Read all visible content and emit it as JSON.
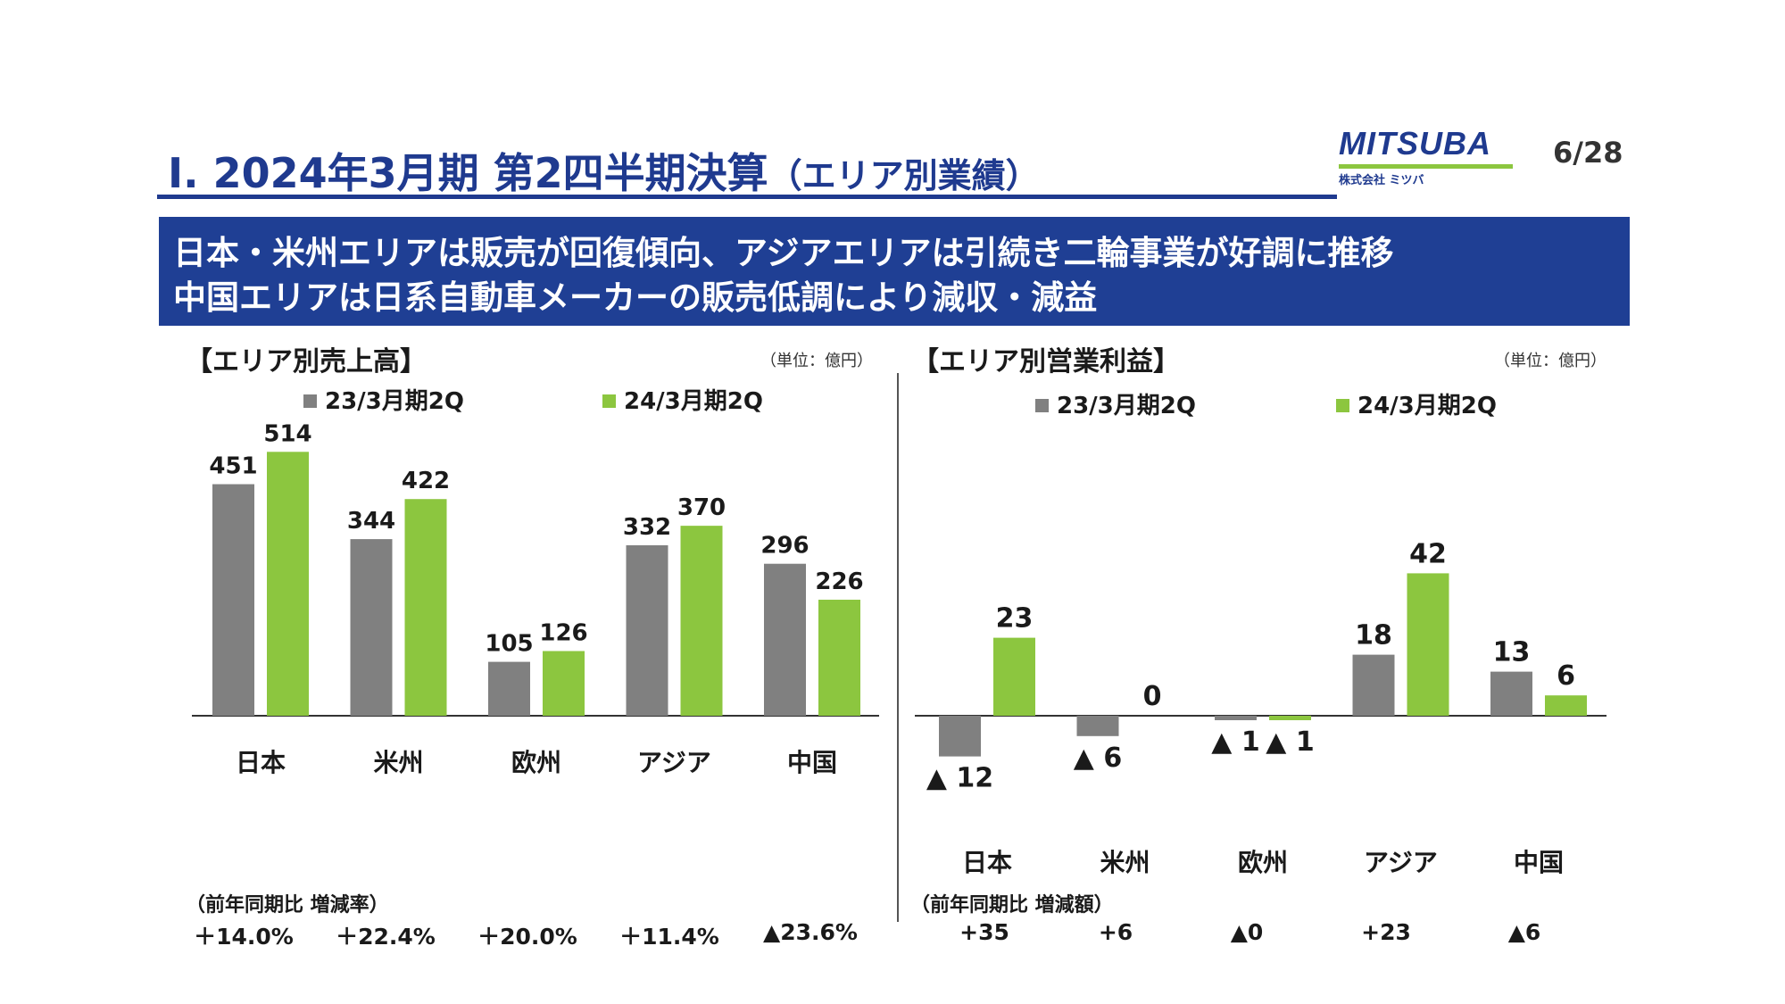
{
  "header": {
    "title": "Ⅰ. 2024年3月期 第2四半期決算",
    "title_sub": "（エリア別業績）",
    "logo_text": "MITSUBA",
    "logo_sub": "株式会社 ミツバ",
    "page": "6/28"
  },
  "banner": {
    "line1": "日本・米州エリアは販売が回復傾向、アジアエリアは引続き二輪事業が好調に推移",
    "line2": "中国エリアは日系自動車メーカーの販売低調により減収・減益"
  },
  "colors": {
    "accent": "#1f3a8f",
    "prev": "#808080",
    "curr": "#8cc63f"
  },
  "sales": {
    "section_title": "【エリア別売上高】",
    "unit": "（単位：億円）",
    "footer_label": "（前年同期比 増減率）",
    "footer_values": [
      "＋14.0%",
      "＋22.4%",
      "＋20.0%",
      "＋11.4%",
      "▲23.6%"
    ]
  },
  "profit": {
    "section_title": "【エリア別営業利益】",
    "unit": "（単位：億円）",
    "footer_label": "（前年同期比 増減額）",
    "footer_values": [
      "+35",
      "+6",
      "▲0",
      "+23",
      "▲6"
    ]
  },
  "chart_data": [
    {
      "type": "bar",
      "title": "【エリア別売上高】",
      "categories": [
        "日本",
        "米州",
        "欧州",
        "アジア",
        "中国"
      ],
      "series": [
        {
          "name": "23/3月期2Q",
          "values": [
            451,
            344,
            105,
            332,
            296
          ],
          "labels": [
            "451",
            "344",
            "105",
            "332",
            "296"
          ]
        },
        {
          "name": "24/3月期2Q",
          "values": [
            514,
            422,
            126,
            370,
            226
          ],
          "labels": [
            "514",
            "422",
            "126",
            "370",
            "226"
          ]
        }
      ],
      "ylim": [
        0,
        514
      ]
    },
    {
      "type": "bar",
      "title": "【エリア別営業利益】",
      "categories": [
        "日本",
        "米州",
        "欧州",
        "アジア",
        "中国"
      ],
      "series": [
        {
          "name": "23/3月期2Q",
          "values": [
            -12,
            -6,
            -1,
            18,
            13
          ],
          "labels": [
            "▲ 12",
            "▲ 6",
            "▲ 1",
            "18",
            "13"
          ]
        },
        {
          "name": "24/3月期2Q",
          "values": [
            23,
            0,
            -1,
            42,
            6
          ],
          "labels": [
            "23",
            "0",
            "▲ 1",
            "42",
            "6"
          ]
        }
      ],
      "ylim": [
        -12,
        42
      ]
    }
  ]
}
